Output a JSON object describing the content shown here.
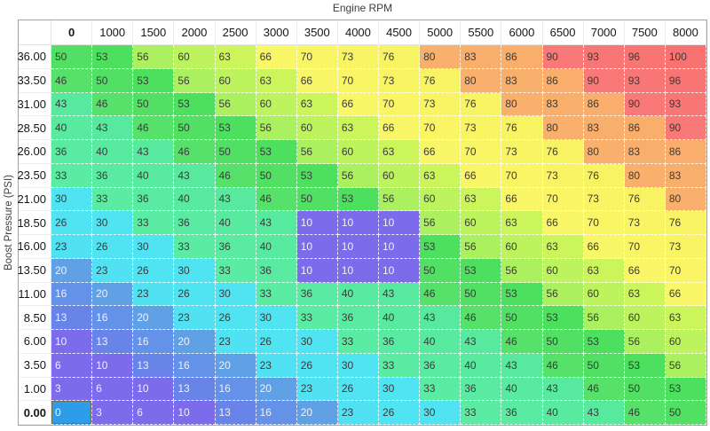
{
  "chart_data": {
    "type": "heatmap",
    "x_label": "Engine RPM",
    "y_label": "Boost Pressure (PSI)",
    "columns": [
      "0",
      "1000",
      "1500",
      "2000",
      "2500",
      "3000",
      "3500",
      "4000",
      "4500",
      "5000",
      "5500",
      "6000",
      "6500",
      "7000",
      "7500",
      "8000"
    ],
    "rows": [
      "36.00",
      "33.50",
      "31.00",
      "28.50",
      "26.00",
      "23.50",
      "21.00",
      "18.50",
      "16.00",
      "13.50",
      "11.00",
      "8.50",
      "6.00",
      "3.50",
      "1.00",
      "0.00"
    ],
    "values": [
      [
        50,
        53,
        56,
        60,
        63,
        66,
        70,
        73,
        76,
        80,
        83,
        86,
        90,
        93,
        96,
        100
      ],
      [
        46,
        50,
        53,
        56,
        60,
        63,
        66,
        70,
        73,
        76,
        80,
        83,
        86,
        90,
        93,
        96
      ],
      [
        43,
        46,
        50,
        53,
        56,
        60,
        63,
        66,
        70,
        73,
        76,
        80,
        83,
        86,
        90,
        93
      ],
      [
        40,
        43,
        46,
        50,
        53,
        56,
        60,
        63,
        66,
        70,
        73,
        76,
        80,
        83,
        86,
        90
      ],
      [
        36,
        40,
        43,
        46,
        50,
        53,
        56,
        60,
        63,
        66,
        70,
        73,
        76,
        80,
        83,
        86
      ],
      [
        33,
        36,
        40,
        43,
        46,
        50,
        53,
        56,
        60,
        63,
        66,
        70,
        73,
        76,
        80,
        83
      ],
      [
        30,
        33,
        36,
        40,
        43,
        46,
        50,
        53,
        56,
        60,
        63,
        66,
        70,
        73,
        76,
        80
      ],
      [
        26,
        30,
        33,
        36,
        40,
        43,
        10,
        10,
        10,
        56,
        60,
        63,
        66,
        70,
        73,
        76
      ],
      [
        23,
        26,
        30,
        33,
        36,
        40,
        10,
        10,
        10,
        53,
        56,
        60,
        63,
        66,
        70,
        73
      ],
      [
        20,
        23,
        26,
        30,
        33,
        36,
        10,
        10,
        10,
        50,
        53,
        56,
        60,
        63,
        66,
        70
      ],
      [
        16,
        20,
        23,
        26,
        30,
        33,
        36,
        40,
        43,
        46,
        50,
        53,
        56,
        60,
        63,
        66
      ],
      [
        13,
        16,
        20,
        23,
        26,
        30,
        33,
        36,
        40,
        43,
        46,
        50,
        53,
        56,
        60,
        63
      ],
      [
        10,
        13,
        16,
        20,
        23,
        26,
        30,
        33,
        36,
        40,
        43,
        46,
        50,
        53,
        56,
        60
      ],
      [
        6,
        10,
        13,
        16,
        20,
        23,
        26,
        30,
        33,
        36,
        40,
        43,
        46,
        50,
        53,
        56
      ],
      [
        3,
        6,
        10,
        13,
        16,
        20,
        23,
        26,
        30,
        33,
        36,
        40,
        43,
        46,
        50,
        53
      ],
      [
        0,
        3,
        6,
        10,
        13,
        16,
        20,
        23,
        26,
        30,
        33,
        36,
        40,
        43,
        46,
        50
      ]
    ],
    "value_range": [
      0,
      100
    ],
    "overridden_region": {
      "rows": [
        "18.50",
        "16.00",
        "13.50"
      ],
      "columns": [
        "3500",
        "4000",
        "4500"
      ],
      "value": 10
    },
    "selected": {
      "row_index": 15,
      "col_index": 0,
      "row": "0.00",
      "column": "0",
      "value": 0
    },
    "colors": {
      "selected_cell_bg": "#2d9de9",
      "selected_cell_border": "#6e6e4b",
      "dark_text": "#3b3b3b",
      "light_text": "#eef0fb",
      "header_text": "#161616",
      "axis_title_text": "#3d3d3d",
      "table_border": "#a3a3a3",
      "scale_anchors_value_h_s_l": [
        [
          0,
          249,
          76,
          67
        ],
        [
          10,
          248,
          76,
          67
        ],
        [
          13,
          227,
          74,
          66
        ],
        [
          16,
          219,
          74,
          65
        ],
        [
          20,
          211,
          73,
          64
        ],
        [
          23,
          186,
          86,
          63
        ],
        [
          30,
          185,
          86,
          63
        ],
        [
          33,
          150,
          79,
          64
        ],
        [
          43,
          149,
          78,
          63
        ],
        [
          46,
          129,
          70,
          61
        ],
        [
          53,
          127,
          70,
          59
        ],
        [
          56,
          89,
          84,
          66
        ],
        [
          63,
          76,
          88,
          66
        ],
        [
          66,
          59,
          92,
          69
        ],
        [
          76,
          58,
          92,
          68
        ],
        [
          80,
          29,
          92,
          70
        ],
        [
          86,
          28,
          92,
          70
        ],
        [
          90,
          1,
          90,
          72
        ],
        [
          100,
          0,
          91,
          71
        ]
      ],
      "light_text_max_value": 20
    }
  }
}
